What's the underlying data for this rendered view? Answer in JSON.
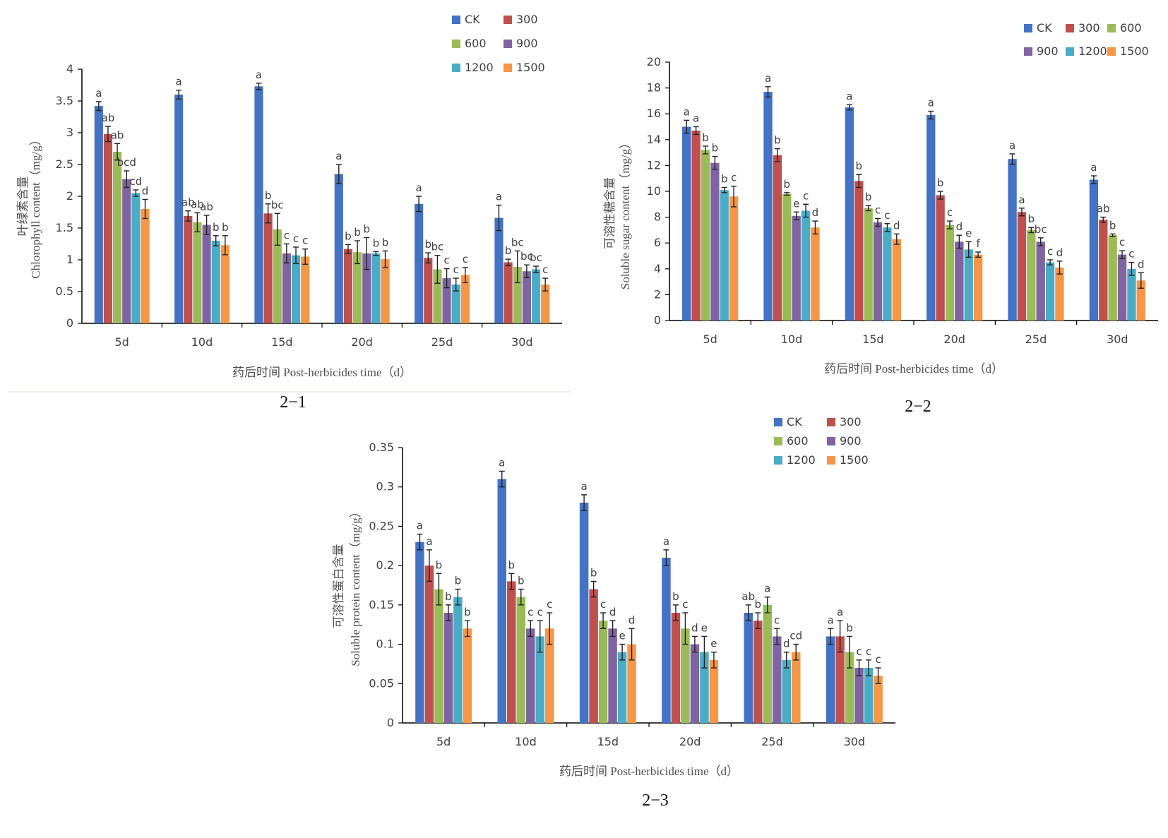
{
  "series_colors": [
    "#4472C4",
    "#C0504D",
    "#9BBB59",
    "#8064A2",
    "#4BACC6",
    "#F79646"
  ],
  "chart_data": [
    {
      "type": "bar",
      "caption": "2−1",
      "ylabel_cn": "叶绿素含量",
      "ylabel_en": "Chlorophyll content（mg/g）",
      "xlabel": "药后时间 Post-herbicides time（d）",
      "categories": [
        "5d",
        "10d",
        "15d",
        "20d",
        "25d",
        "30d"
      ],
      "ylim": [
        0,
        4
      ],
      "yticks": [
        "0",
        "0.5",
        "1",
        "1.5",
        "2",
        "2.5",
        "3",
        "3.5",
        "4"
      ],
      "legend_position": "top-right",
      "series": [
        {
          "name": "CK",
          "values": [
            3.42,
            3.6,
            3.73,
            2.35,
            1.88,
            1.66
          ],
          "errors": [
            0.07,
            0.07,
            0.05,
            0.15,
            0.12,
            0.2
          ],
          "letters": [
            "a",
            "a",
            "a",
            "a",
            "a",
            "a"
          ]
        },
        {
          "name": "300",
          "values": [
            2.98,
            1.69,
            1.73,
            1.17,
            1.03,
            0.96
          ],
          "errors": [
            0.12,
            0.08,
            0.15,
            0.07,
            0.08,
            0.05
          ],
          "letters": [
            "ab",
            "ab",
            "b",
            "b",
            "b",
            "b"
          ]
        },
        {
          "name": "600",
          "values": [
            2.7,
            1.59,
            1.48,
            1.12,
            0.85,
            0.89
          ],
          "errors": [
            0.13,
            0.15,
            0.25,
            0.18,
            0.22,
            0.25
          ],
          "letters": [
            "ab",
            "ab",
            "bc",
            "b",
            "bc",
            "bc"
          ]
        },
        {
          "name": "900",
          "values": [
            2.27,
            1.55,
            1.1,
            1.1,
            0.71,
            0.82
          ],
          "errors": [
            0.13,
            0.15,
            0.15,
            0.25,
            0.15,
            0.1
          ],
          "letters": [
            "bcd",
            "ab",
            "c",
            "b",
            "c",
            "bc"
          ]
        },
        {
          "name": "1200",
          "values": [
            2.05,
            1.3,
            1.07,
            1.1,
            0.61,
            0.85
          ],
          "errors": [
            0.05,
            0.08,
            0.13,
            0.03,
            0.1,
            0.05
          ],
          "letters": [
            "cd",
            "b",
            "c",
            "b",
            "c",
            "bc"
          ]
        },
        {
          "name": "1500",
          "values": [
            1.8,
            1.23,
            1.05,
            1.01,
            0.76,
            0.61
          ],
          "errors": [
            0.15,
            0.15,
            0.12,
            0.13,
            0.12,
            0.1
          ],
          "letters": [
            "d",
            "b",
            "c",
            "b",
            "c",
            "c"
          ]
        }
      ]
    },
    {
      "type": "bar",
      "caption": "2−2",
      "ylabel_cn": "可溶性糖含量",
      "ylabel_en": "Soluble sugar content（mg/g）",
      "xlabel": "药后时间 Post-herbicides time（d）",
      "categories": [
        "5d",
        "10d",
        "15d",
        "20d",
        "25d",
        "30d"
      ],
      "ylim": [
        0,
        20
      ],
      "yticks": [
        "0",
        "2",
        "4",
        "6",
        "8",
        "10",
        "12",
        "14",
        "16",
        "18",
        "20"
      ],
      "legend_position": "top-right",
      "series": [
        {
          "name": "CK",
          "values": [
            15.0,
            17.7,
            16.5,
            15.9,
            12.5,
            10.9
          ],
          "errors": [
            0.5,
            0.4,
            0.2,
            0.3,
            0.4,
            0.3
          ],
          "letters": [
            "a",
            "a",
            "a",
            "a",
            "a",
            "a"
          ]
        },
        {
          "name": "300",
          "values": [
            14.7,
            12.8,
            10.8,
            9.7,
            8.4,
            7.8
          ],
          "errors": [
            0.3,
            0.5,
            0.5,
            0.3,
            0.3,
            0.2
          ],
          "letters": [
            "a",
            "b",
            "b",
            "b",
            "a",
            "ab"
          ]
        },
        {
          "name": "600",
          "values": [
            13.2,
            9.8,
            8.7,
            7.4,
            7.0,
            6.6
          ],
          "errors": [
            0.3,
            0.1,
            0.2,
            0.3,
            0.2,
            0.1
          ],
          "letters": [
            "b",
            "b",
            "b",
            "c",
            "b",
            "b"
          ]
        },
        {
          "name": "900",
          "values": [
            12.2,
            8.1,
            7.6,
            6.1,
            6.1,
            5.1
          ],
          "errors": [
            0.5,
            0.3,
            0.3,
            0.5,
            0.3,
            0.3
          ],
          "letters": [
            "b",
            "e",
            "c",
            "d",
            "bc",
            "c"
          ]
        },
        {
          "name": "1200",
          "values": [
            10.1,
            8.5,
            7.2,
            5.5,
            4.5,
            4.0
          ],
          "errors": [
            0.2,
            0.5,
            0.3,
            0.6,
            0.2,
            0.5
          ],
          "letters": [
            "b",
            "c",
            "c",
            "e",
            "c",
            "c"
          ]
        },
        {
          "name": "1500",
          "values": [
            9.6,
            7.2,
            6.3,
            5.1,
            4.1,
            3.1
          ],
          "errors": [
            0.8,
            0.5,
            0.4,
            0.2,
            0.5,
            0.6
          ],
          "letters": [
            "c",
            "d",
            "d",
            "f",
            "d",
            "d"
          ]
        }
      ]
    },
    {
      "type": "bar",
      "caption": "2−3",
      "ylabel_cn": "可溶性蛋白含量",
      "ylabel_en": "Soluble protein content（mg/g）",
      "xlabel": "药后时间 Post-herbicides time（d）",
      "categories": [
        "5d",
        "10d",
        "15d",
        "20d",
        "25d",
        "30d"
      ],
      "ylim": [
        0,
        0.35
      ],
      "yticks": [
        "0",
        "0.05",
        "0.1",
        "0.15",
        "0.2",
        "0.25",
        "0.3",
        "0.35"
      ],
      "legend_position": "top-right",
      "series": [
        {
          "name": "CK",
          "values": [
            0.23,
            0.31,
            0.28,
            0.21,
            0.14,
            0.11
          ],
          "errors": [
            0.01,
            0.01,
            0.01,
            0.01,
            0.01,
            0.01
          ],
          "letters": [
            "a",
            "a",
            "a",
            "a",
            "ab",
            "a"
          ]
        },
        {
          "name": "300",
          "values": [
            0.2,
            0.18,
            0.17,
            0.14,
            0.13,
            0.11
          ],
          "errors": [
            0.02,
            0.01,
            0.01,
            0.01,
            0.01,
            0.02
          ],
          "letters": [
            "a",
            "b",
            "b",
            "b",
            "b",
            "a"
          ]
        },
        {
          "name": "600",
          "values": [
            0.17,
            0.16,
            0.13,
            0.12,
            0.15,
            0.09
          ],
          "errors": [
            0.02,
            0.01,
            0.01,
            0.02,
            0.01,
            0.02
          ],
          "letters": [
            "b",
            "b",
            "c",
            "c",
            "a",
            "b"
          ]
        },
        {
          "name": "900",
          "values": [
            0.14,
            0.12,
            0.12,
            0.1,
            0.11,
            0.07
          ],
          "errors": [
            0.01,
            0.01,
            0.01,
            0.01,
            0.01,
            0.01
          ],
          "letters": [
            "b",
            "c",
            "d",
            "d",
            "c",
            "c"
          ]
        },
        {
          "name": "1200",
          "values": [
            0.16,
            0.11,
            0.09,
            0.09,
            0.08,
            0.07
          ],
          "errors": [
            0.01,
            0.02,
            0.01,
            0.02,
            0.01,
            0.01
          ],
          "letters": [
            "b",
            "c",
            "e",
            "e",
            "d",
            "c"
          ]
        },
        {
          "name": "1500",
          "values": [
            0.12,
            0.12,
            0.1,
            0.08,
            0.09,
            0.06
          ],
          "errors": [
            0.01,
            0.02,
            0.02,
            0.01,
            0.01,
            0.01
          ],
          "letters": [
            "b",
            "c",
            "d",
            "e",
            "cd",
            "c"
          ]
        }
      ]
    }
  ]
}
